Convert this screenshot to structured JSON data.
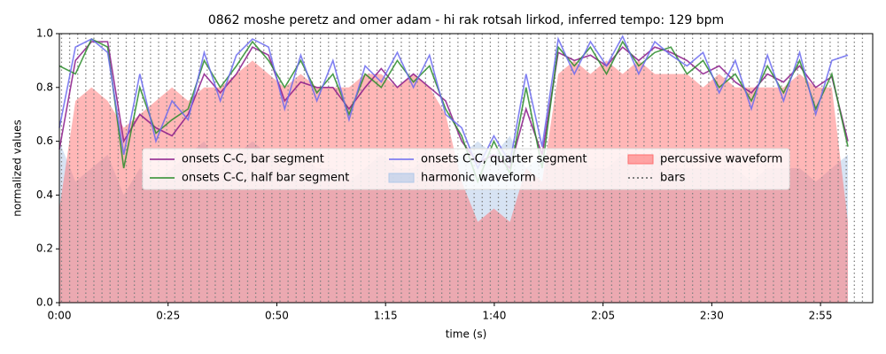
{
  "chart_data": {
    "type": "line",
    "title": "0862 moshe peretz and omer adam - hi rak rotsah lirkod, inferred tempo: 129 bpm",
    "xlabel": "time (s)",
    "ylabel": "normalized values",
    "xlim": [
      0,
      187
    ],
    "ylim": [
      0,
      1
    ],
    "xticks": [
      {
        "value": 0,
        "label": "0:00"
      },
      {
        "value": 25,
        "label": "0:25"
      },
      {
        "value": 50,
        "label": "0:50"
      },
      {
        "value": 75,
        "label": "1:15"
      },
      {
        "value": 100,
        "label": "1:40"
      },
      {
        "value": 125,
        "label": "2:05"
      },
      {
        "value": 150,
        "label": "2:30"
      },
      {
        "value": 175,
        "label": "2:55"
      }
    ],
    "yticks": [
      {
        "value": 0,
        "label": "0.0"
      },
      {
        "value": 0.2,
        "label": "0.2"
      },
      {
        "value": 0.4,
        "label": "0.4"
      },
      {
        "value": 0.6,
        "label": "0.6"
      },
      {
        "value": 0.8,
        "label": "0.8"
      },
      {
        "value": 1,
        "label": "1.0"
      }
    ],
    "legend": "upper center",
    "x": [
      0,
      3.7,
      7.4,
      11.1,
      14.8,
      18.5,
      22.2,
      25.9,
      29.6,
      33.3,
      37,
      40.7,
      44.4,
      48.1,
      51.8,
      55.5,
      59.2,
      62.9,
      66.6,
      70.3,
      74,
      77.7,
      81.4,
      85.1,
      88.8,
      92.5,
      96.2,
      99.9,
      103.6,
      107.3,
      111,
      114.7,
      118.4,
      122.1,
      125.8,
      129.5,
      133.2,
      136.9,
      140.6,
      144.3,
      148,
      151.7,
      155.4,
      159.1,
      162.8,
      166.5,
      170.2,
      173.9,
      177.6,
      181.3
    ],
    "series": [
      {
        "name": "onsets C-C, bar segment",
        "kind": "line",
        "color": "#8b1a89",
        "values": [
          0.57,
          0.9,
          0.97,
          0.97,
          0.6,
          0.7,
          0.65,
          0.62,
          0.7,
          0.85,
          0.78,
          0.85,
          0.95,
          0.92,
          0.75,
          0.82,
          0.8,
          0.8,
          0.72,
          0.8,
          0.87,
          0.8,
          0.85,
          0.8,
          0.75,
          0.6,
          0.52,
          0.55,
          0.5,
          0.72,
          0.55,
          0.93,
          0.9,
          0.92,
          0.88,
          0.95,
          0.9,
          0.95,
          0.93,
          0.9,
          0.85,
          0.88,
          0.82,
          0.78,
          0.85,
          0.82,
          0.88,
          0.8,
          0.84,
          0.6
        ]
      },
      {
        "name": "onsets C-C, half bar segment",
        "kind": "line",
        "color": "#2a8c2a",
        "values": [
          0.88,
          0.85,
          0.98,
          0.95,
          0.5,
          0.8,
          0.63,
          0.68,
          0.72,
          0.9,
          0.8,
          0.88,
          0.97,
          0.9,
          0.8,
          0.9,
          0.78,
          0.85,
          0.7,
          0.85,
          0.8,
          0.9,
          0.82,
          0.88,
          0.72,
          0.62,
          0.45,
          0.6,
          0.48,
          0.8,
          0.5,
          0.95,
          0.88,
          0.95,
          0.85,
          0.97,
          0.88,
          0.93,
          0.95,
          0.85,
          0.9,
          0.8,
          0.85,
          0.75,
          0.88,
          0.78,
          0.9,
          0.72,
          0.85,
          0.58
        ]
      },
      {
        "name": "onsets C-C, quarter segment",
        "kind": "line",
        "color": "#6b6bf0",
        "values": [
          0.65,
          0.95,
          0.98,
          0.93,
          0.55,
          0.85,
          0.6,
          0.75,
          0.68,
          0.93,
          0.75,
          0.92,
          0.98,
          0.95,
          0.72,
          0.92,
          0.75,
          0.9,
          0.68,
          0.88,
          0.82,
          0.93,
          0.8,
          0.92,
          0.7,
          0.65,
          0.5,
          0.62,
          0.52,
          0.85,
          0.58,
          0.98,
          0.85,
          0.97,
          0.88,
          0.99,
          0.85,
          0.97,
          0.92,
          0.88,
          0.93,
          0.78,
          0.9,
          0.72,
          0.92,
          0.75,
          0.93,
          0.7,
          0.9,
          0.92
        ]
      },
      {
        "name": "harmonic waveform",
        "kind": "area",
        "color": "#b0c8e8",
        "values": [
          0.6,
          0.45,
          0.5,
          0.55,
          0.4,
          0.5,
          0.45,
          0.5,
          0.55,
          0.6,
          0.5,
          0.55,
          0.6,
          0.55,
          0.5,
          0.55,
          0.5,
          0.5,
          0.45,
          0.5,
          0.55,
          0.5,
          0.5,
          0.55,
          0.5,
          0.55,
          0.6,
          0.55,
          0.62,
          0.5,
          0.55,
          0.5,
          0.55,
          0.5,
          0.5,
          0.55,
          0.5,
          0.55,
          0.5,
          0.5,
          0.5,
          0.5,
          0.5,
          0.45,
          0.5,
          0.5,
          0.5,
          0.45,
          0.5,
          0.55
        ]
      },
      {
        "name": "percussive waveform",
        "kind": "area",
        "color": "#ff7070",
        "values": [
          0.35,
          0.75,
          0.8,
          0.75,
          0.65,
          0.7,
          0.75,
          0.8,
          0.75,
          0.8,
          0.8,
          0.85,
          0.9,
          0.85,
          0.8,
          0.85,
          0.8,
          0.8,
          0.8,
          0.85,
          0.85,
          0.8,
          0.85,
          0.8,
          0.7,
          0.45,
          0.3,
          0.35,
          0.3,
          0.5,
          0.45,
          0.85,
          0.9,
          0.85,
          0.9,
          0.85,
          0.9,
          0.85,
          0.85,
          0.85,
          0.8,
          0.85,
          0.8,
          0.8,
          0.8,
          0.8,
          0.85,
          0.8,
          0.8,
          0.3
        ]
      },
      {
        "name": "bars",
        "kind": "vlines",
        "color": "#808080",
        "x": [
          0.5,
          2.36,
          4.22,
          6.08,
          7.94,
          9.8,
          11.66,
          13.52,
          15.38,
          17.24,
          19.1,
          20.96,
          22.82,
          24.68,
          26.54,
          28.4,
          30.26,
          32.12,
          33.98,
          35.84,
          37.7,
          39.56,
          41.42,
          43.28,
          45.14,
          47,
          48.86,
          50.72,
          52.58,
          54.44,
          56.3,
          58.16,
          60.02,
          61.88,
          63.74,
          65.6,
          67.46,
          69.32,
          71.18,
          73.04,
          74.9,
          76.76,
          78.62,
          80.48,
          82.34,
          84.2,
          86.06,
          87.92,
          89.78,
          91.64,
          93.5,
          95.36,
          97.22,
          99.08,
          100.94,
          102.8,
          104.66,
          106.52,
          108.38,
          110.24,
          112.1,
          113.96,
          115.82,
          117.68,
          119.54,
          121.4,
          123.26,
          125.12,
          126.98,
          128.84,
          130.7,
          132.56,
          134.42,
          136.28,
          138.14,
          140,
          141.86,
          143.72,
          145.58,
          147.44,
          149.3,
          151.16,
          153.02,
          154.88,
          156.74,
          158.6,
          160.46,
          162.32,
          164.18,
          166.04,
          167.9,
          169.76,
          171.62,
          173.48,
          175.34,
          177.2,
          179.06,
          180.92,
          182.78,
          184.64
        ]
      }
    ]
  }
}
